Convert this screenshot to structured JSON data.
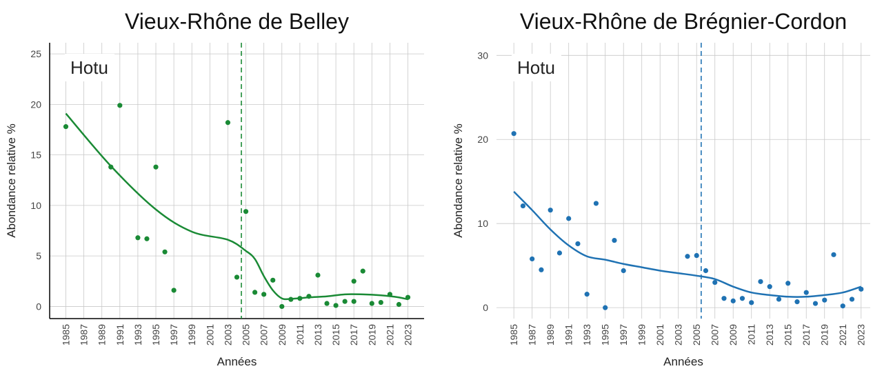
{
  "chart_data": [
    {
      "type": "scatter",
      "title": "Vieux-Rhône de Belley",
      "annotation": "Hotu",
      "xlabel": "Années",
      "ylabel": "Abondance relative %",
      "color": "#1a8a35",
      "grid": true,
      "axis_lines": true,
      "xlim": [
        1983.2,
        2024.8
      ],
      "ylim": [
        -1.2,
        26.1
      ],
      "xticks": [
        1985,
        1987,
        1989,
        1991,
        1993,
        1995,
        1997,
        1999,
        2001,
        2003,
        2005,
        2007,
        2009,
        2011,
        2013,
        2015,
        2017,
        2019,
        2021,
        2023
      ],
      "yticks": [
        0,
        5,
        10,
        15,
        20,
        25
      ],
      "vline": 2004.5,
      "x": [
        1985,
        1990,
        1991,
        1993,
        1994,
        1995,
        1996,
        1997,
        2003,
        2004,
        2005,
        2006,
        2007,
        2008,
        2009,
        2010,
        2011,
        2012,
        2013,
        2014,
        2015,
        2016,
        2017,
        2017,
        2018,
        2019,
        2020,
        2021,
        2022,
        2023
      ],
      "y": [
        17.8,
        13.8,
        19.9,
        6.8,
        6.7,
        13.8,
        5.4,
        1.6,
        18.2,
        2.9,
        9.4,
        1.4,
        1.2,
        2.6,
        0,
        0.7,
        0.8,
        1.0,
        3.1,
        0.3,
        0.1,
        0.5,
        2.5,
        0.5,
        3.5,
        0.3,
        0.4,
        1.2,
        0.2,
        0.9
      ],
      "trend": {
        "x": [
          1985,
          1990,
          1995,
          1999,
          2003,
          2005,
          2006,
          2007,
          2008,
          2009,
          2010,
          2012,
          2014,
          2016,
          2018,
          2020,
          2022,
          2023
        ],
        "y": [
          19.1,
          13.9,
          9.6,
          7.4,
          6.6,
          5.5,
          4.7,
          3.0,
          1.6,
          0.8,
          0.75,
          0.9,
          1.0,
          1.2,
          1.2,
          1.1,
          0.9,
          0.7
        ]
      }
    },
    {
      "type": "scatter",
      "title": "Vieux-Rhône de Brégnier-Cordon",
      "annotation": "Hotu",
      "xlabel": "Années",
      "ylabel": "Abondance relative %",
      "color": "#1f72b3",
      "grid": true,
      "axis_lines": false,
      "xlim": [
        1983.1,
        2024.0
      ],
      "ylim": [
        -1.3,
        31.5
      ],
      "xticks": [
        1985,
        1987,
        1989,
        1991,
        1993,
        1995,
        1997,
        1999,
        2001,
        2003,
        2005,
        2007,
        2009,
        2011,
        2013,
        2015,
        2017,
        2019,
        2021,
        2023
      ],
      "yticks": [
        0,
        10,
        20,
        30
      ],
      "vline": 2005.5,
      "x": [
        1985,
        1986,
        1987,
        1988,
        1989,
        1990,
        1991,
        1992,
        1993,
        1994,
        1995,
        1996,
        1997,
        2004,
        2005,
        2006,
        2007,
        2008,
        2009,
        2010,
        2011,
        2012,
        2013,
        2014,
        2015,
        2016,
        2017,
        2018,
        2019,
        2020,
        2021,
        2022,
        2023
      ],
      "y": [
        20.7,
        12.1,
        5.8,
        4.5,
        11.6,
        6.5,
        10.6,
        7.6,
        1.6,
        12.4,
        0,
        8.0,
        4.4,
        6.1,
        6.2,
        4.4,
        3.0,
        1.1,
        0.8,
        1.1,
        0.6,
        3.1,
        2.5,
        1.0,
        2.9,
        0.7,
        1.8,
        0.5,
        0.9,
        6.3,
        0.2,
        1.0,
        2.2
      ],
      "trend": {
        "x": [
          1985,
          1987,
          1989,
          1991,
          1993,
          1995,
          1997,
          1999,
          2001,
          2003,
          2005,
          2007,
          2009,
          2011,
          2013,
          2015,
          2017,
          2019,
          2021,
          2023
        ],
        "y": [
          13.8,
          11.6,
          9.3,
          7.4,
          6.1,
          5.7,
          5.2,
          4.8,
          4.4,
          4.1,
          3.8,
          3.4,
          2.5,
          1.8,
          1.5,
          1.3,
          1.3,
          1.5,
          1.8,
          2.5
        ]
      }
    }
  ]
}
